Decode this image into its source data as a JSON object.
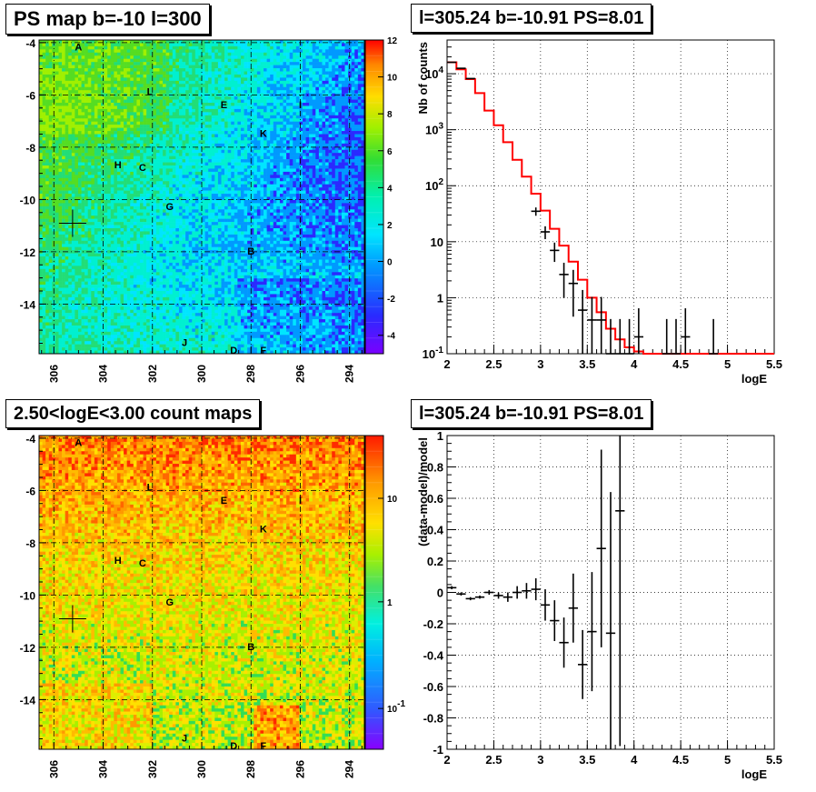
{
  "titles": {
    "ps_map": "PS map b=-10 l=300",
    "spectrum": "l=305.24 b=-10.91 PS=8.01",
    "count_map": "2.50<logE<3.00 count maps",
    "residual": "l=305.24 b=-10.91 PS=8.01"
  },
  "colors": {
    "fit_line": "#ff0000",
    "data_points": "#000000",
    "grid": "#000000"
  },
  "chart_data": [
    {
      "id": "ps_map",
      "type": "heatmap",
      "title": "PS map b=-10 l=300",
      "x_ticks": [
        "306",
        "304",
        "302",
        "300",
        "298",
        "296",
        "294"
      ],
      "y_ticks": [
        "-4",
        "-6",
        "-8",
        "-10",
        "-12",
        "-14"
      ],
      "xlim": [
        306.6,
        293.4
      ],
      "ylim": [
        -15.9,
        -3.9
      ],
      "colorbar": {
        "ticks": [
          "12",
          "10",
          "8",
          "6",
          "4",
          "2",
          "0",
          "-2",
          "-4"
        ],
        "range": [
          -5,
          12
        ]
      },
      "source_labels": [
        {
          "name": "A",
          "l": 305.0,
          "b": -4.3
        },
        {
          "name": "L",
          "l": 302.1,
          "b": -6.0
        },
        {
          "name": "E",
          "l": 299.1,
          "b": -6.5
        },
        {
          "name": "I",
          "l": 296.0,
          "b": -6.5
        },
        {
          "name": "K",
          "l": 297.5,
          "b": -7.6
        },
        {
          "name": "H",
          "l": 303.4,
          "b": -8.8
        },
        {
          "name": "C",
          "l": 302.4,
          "b": -8.9
        },
        {
          "name": "G",
          "l": 301.3,
          "b": -10.4
        },
        {
          "name": "B",
          "l": 298.0,
          "b": -12.1
        },
        {
          "name": "J",
          "l": 300.7,
          "b": -15.6
        },
        {
          "name": "D",
          "l": 298.7,
          "b": -15.9
        },
        {
          "name": "F",
          "l": 297.5,
          "b": -15.9
        }
      ],
      "marker": {
        "l": 305.24,
        "b": -10.91
      }
    },
    {
      "id": "spectrum",
      "type": "line",
      "title": "l=305.24 b=-10.91 PS=8.01",
      "xlabel": "logE",
      "ylabel": "Nb of counts",
      "x_ticks": [
        "2",
        "2.5",
        "3",
        "3.5",
        "4",
        "4.5",
        "5",
        "5.5"
      ],
      "y_ticks": [
        "10^-1",
        "1",
        "10",
        "10^2",
        "10^3",
        "10^4"
      ],
      "xlim": [
        2,
        5.5
      ],
      "ylim": [
        0.1,
        40000
      ],
      "yscale": "log",
      "grid": true,
      "model_steps": {
        "edges": [
          2.0,
          2.1,
          2.2,
          2.3,
          2.4,
          2.5,
          2.6,
          2.7,
          2.8,
          2.9,
          3.0,
          3.1,
          3.2,
          3.3,
          3.4,
          3.5,
          3.6,
          3.7,
          3.8,
          3.9,
          4.0,
          4.1,
          4.2,
          5.5
        ],
        "values": [
          16000,
          12000,
          8000,
          4500,
          2200,
          1200,
          600,
          290,
          145,
          72,
          36,
          17,
          8.5,
          4.4,
          2.1,
          1.0,
          0.55,
          0.28,
          0.18,
          0.13,
          0.11,
          0.1,
          0.1
        ]
      },
      "data_points": [
        {
          "x": 2.05,
          "y": 16000
        },
        {
          "x": 2.15,
          "y": 12500
        },
        {
          "x": 2.25,
          "y": 8200
        },
        {
          "x": 2.95,
          "y": 35
        },
        {
          "x": 3.05,
          "y": 15
        },
        {
          "x": 3.15,
          "y": 7
        },
        {
          "x": 3.25,
          "y": 2.6
        },
        {
          "x": 3.35,
          "y": 1.8
        },
        {
          "x": 3.45,
          "y": 0.6
        },
        {
          "x": 3.55,
          "y": 0.4
        },
        {
          "x": 3.65,
          "y": 0.4
        },
        {
          "x": 3.75,
          "y": 0.1
        },
        {
          "x": 3.85,
          "y": 0.1
        },
        {
          "x": 3.95,
          "y": 0.1
        },
        {
          "x": 4.05,
          "y": 0.2
        },
        {
          "x": 4.35,
          "y": 0.1
        },
        {
          "x": 4.45,
          "y": 0.1
        },
        {
          "x": 4.55,
          "y": 0.2
        },
        {
          "x": 4.85,
          "y": 0.1
        }
      ]
    },
    {
      "id": "count_map",
      "type": "heatmap",
      "title": "2.50<logE<3.00 count maps",
      "x_ticks": [
        "306",
        "304",
        "302",
        "300",
        "298",
        "296",
        "294"
      ],
      "y_ticks": [
        "-4",
        "-6",
        "-8",
        "-10",
        "-12",
        "-14"
      ],
      "xlim": [
        306.6,
        293.4
      ],
      "ylim": [
        -15.9,
        -3.9
      ],
      "colorbar": {
        "ticks": [
          "10",
          "1",
          "10^-1"
        ],
        "scale": "log"
      },
      "source_labels": [
        {
          "name": "A",
          "l": 305.0,
          "b": -4.3
        },
        {
          "name": "L",
          "l": 302.1,
          "b": -6.0
        },
        {
          "name": "E",
          "l": 299.1,
          "b": -6.5
        },
        {
          "name": "I",
          "l": 296.0,
          "b": -6.5
        },
        {
          "name": "K",
          "l": 297.5,
          "b": -7.6
        },
        {
          "name": "H",
          "l": 303.4,
          "b": -8.8
        },
        {
          "name": "C",
          "l": 302.4,
          "b": -8.9
        },
        {
          "name": "G",
          "l": 301.3,
          "b": -10.4
        },
        {
          "name": "B",
          "l": 298.0,
          "b": -12.1
        },
        {
          "name": "J",
          "l": 300.7,
          "b": -15.6
        },
        {
          "name": "D",
          "l": 298.7,
          "b": -15.9
        },
        {
          "name": "F",
          "l": 297.5,
          "b": -15.9
        }
      ],
      "marker": {
        "l": 305.24,
        "b": -10.91
      }
    },
    {
      "id": "residual",
      "type": "scatter",
      "title": "l=305.24 b=-10.91 PS=8.01",
      "xlabel": "logE",
      "ylabel": "(data-model)/model",
      "x_ticks": [
        "2",
        "2.5",
        "3",
        "3.5",
        "4",
        "4.5",
        "5",
        "5.5"
      ],
      "y_ticks": [
        "-1",
        "-0.8",
        "-0.6",
        "-0.4",
        "-0.2",
        "0",
        "0.2",
        "0.4",
        "0.6",
        "0.8",
        "1"
      ],
      "xlim": [
        2,
        5.5
      ],
      "ylim": [
        -1,
        1
      ],
      "grid": true,
      "points": [
        {
          "x": 2.05,
          "y": 0.03,
          "err": 0.01
        },
        {
          "x": 2.15,
          "y": -0.01,
          "err": 0.01
        },
        {
          "x": 2.25,
          "y": -0.04,
          "err": 0.01
        },
        {
          "x": 2.35,
          "y": -0.03,
          "err": 0.01
        },
        {
          "x": 2.45,
          "y": 0.0,
          "err": 0.015
        },
        {
          "x": 2.55,
          "y": -0.02,
          "err": 0.02
        },
        {
          "x": 2.65,
          "y": -0.03,
          "err": 0.03
        },
        {
          "x": 2.75,
          "y": 0.0,
          "err": 0.04
        },
        {
          "x": 2.85,
          "y": 0.01,
          "err": 0.05
        },
        {
          "x": 2.95,
          "y": 0.02,
          "err": 0.07
        },
        {
          "x": 3.05,
          "y": -0.08,
          "err": 0.1
        },
        {
          "x": 3.15,
          "y": -0.18,
          "err": 0.13
        },
        {
          "x": 3.25,
          "y": -0.32,
          "err": 0.16
        },
        {
          "x": 3.35,
          "y": -0.1,
          "err": 0.22
        },
        {
          "x": 3.45,
          "y": -0.46,
          "err": 0.22
        },
        {
          "x": 3.55,
          "y": -0.25,
          "err": 0.38
        },
        {
          "x": 3.65,
          "y": 0.28,
          "err": 0.63
        },
        {
          "x": 3.75,
          "y": -0.26,
          "err": 0.9
        },
        {
          "x": 3.85,
          "y": 0.52,
          "err": 1.5
        }
      ]
    }
  ]
}
